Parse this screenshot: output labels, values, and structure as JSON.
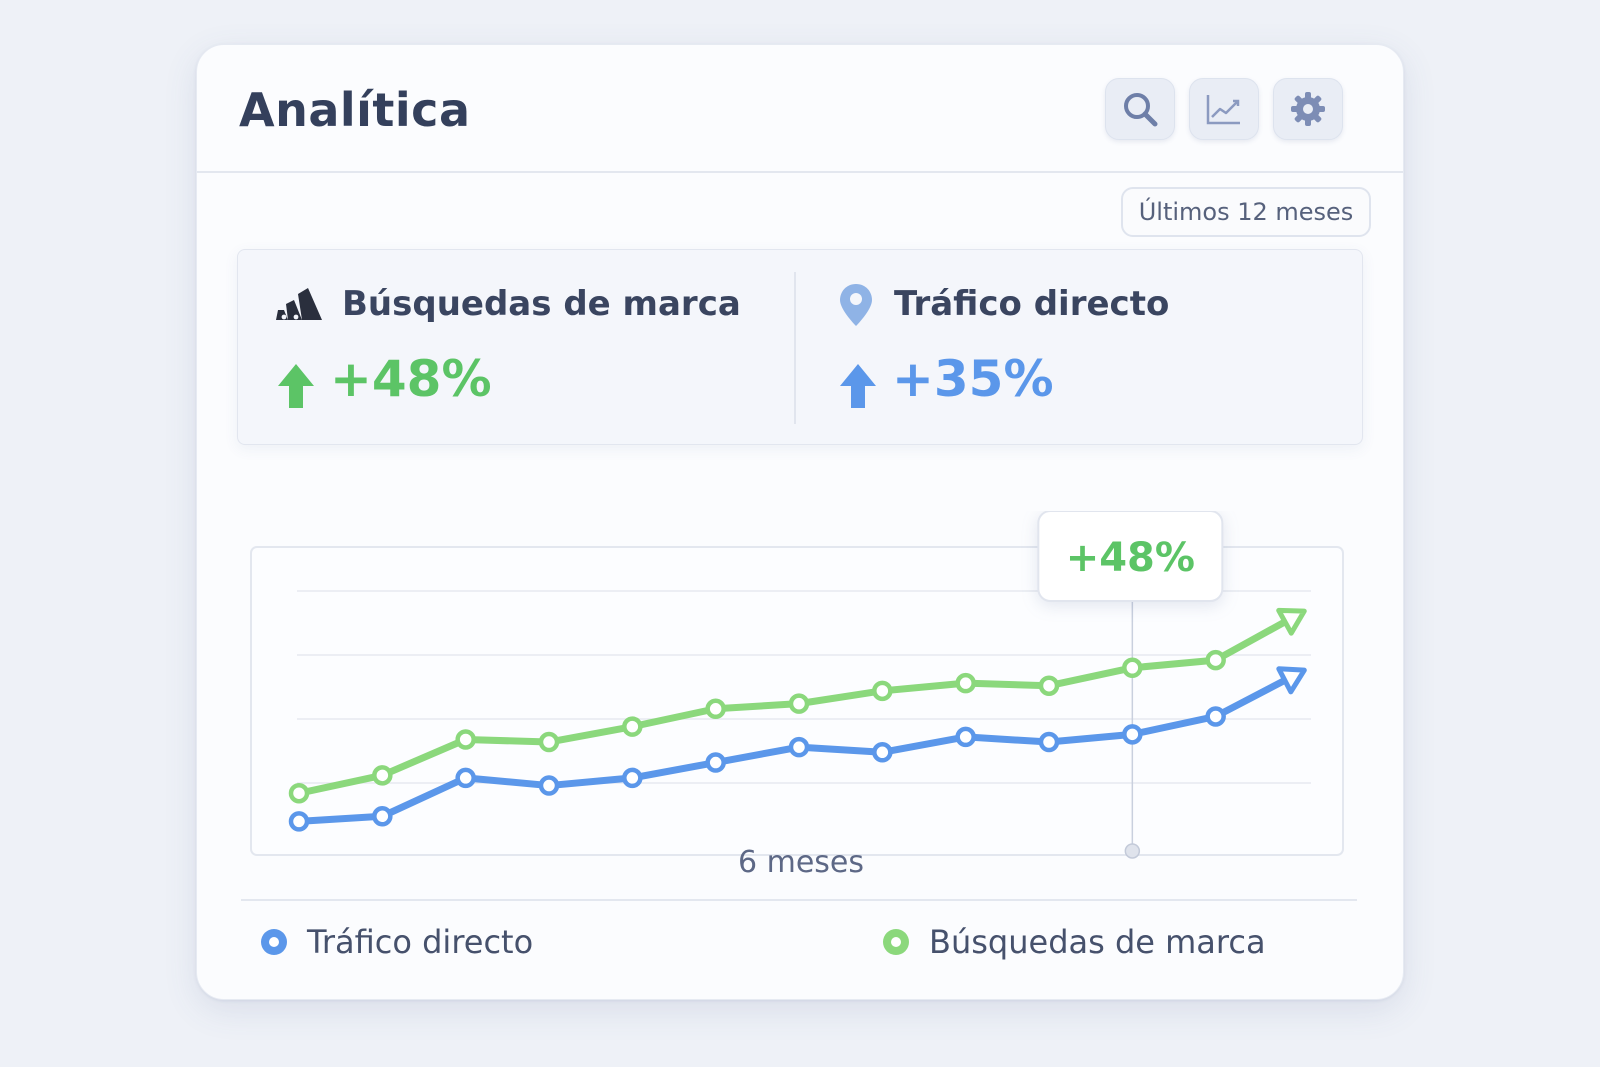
{
  "header": {
    "title": "Analítica"
  },
  "toolbar": {
    "search_icon": "search-icon",
    "chart_icon": "chart-line-icon",
    "settings_icon": "gear-icon"
  },
  "range_selector": {
    "label": "Últimos 12 meses"
  },
  "kpis": [
    {
      "label": "Búsquedas de marca",
      "value": "+48%",
      "icon": "brand-stripes-icon",
      "color": "#5cc466"
    },
    {
      "label": "Tráfico directo",
      "value": "+35%",
      "icon": "location-pin-icon",
      "color": "#5b97ea"
    }
  ],
  "colors": {
    "green": "#8bd87c",
    "green_text": "#5cc466",
    "blue": "#5b97ea"
  },
  "chart_data": {
    "type": "line",
    "title": "",
    "xlabel": "6 meses",
    "ylabel": "",
    "x": [
      1,
      2,
      3,
      4,
      5,
      6,
      7,
      8,
      9,
      10,
      11,
      12,
      13
    ],
    "ylim": [
      0,
      100
    ],
    "grid": true,
    "legend_position": "bottom",
    "series": [
      {
        "name": "Tráfico directo",
        "color": "#5b97ea",
        "values": [
          10,
          12,
          27,
          24,
          27,
          33,
          39,
          37,
          43,
          41,
          44,
          51,
          68
        ]
      },
      {
        "name": "Búsquedas de marca",
        "color": "#8bd87c",
        "values": [
          21,
          28,
          42,
          41,
          47,
          54,
          56,
          61,
          64,
          63,
          70,
          73,
          91
        ]
      }
    ],
    "annotation": {
      "text": "+48%",
      "x": 11
    }
  },
  "legend": [
    {
      "label": "Tráfico directo",
      "color": "#5b97ea"
    },
    {
      "label": "Búsquedas de marca",
      "color": "#8bd87c"
    }
  ]
}
